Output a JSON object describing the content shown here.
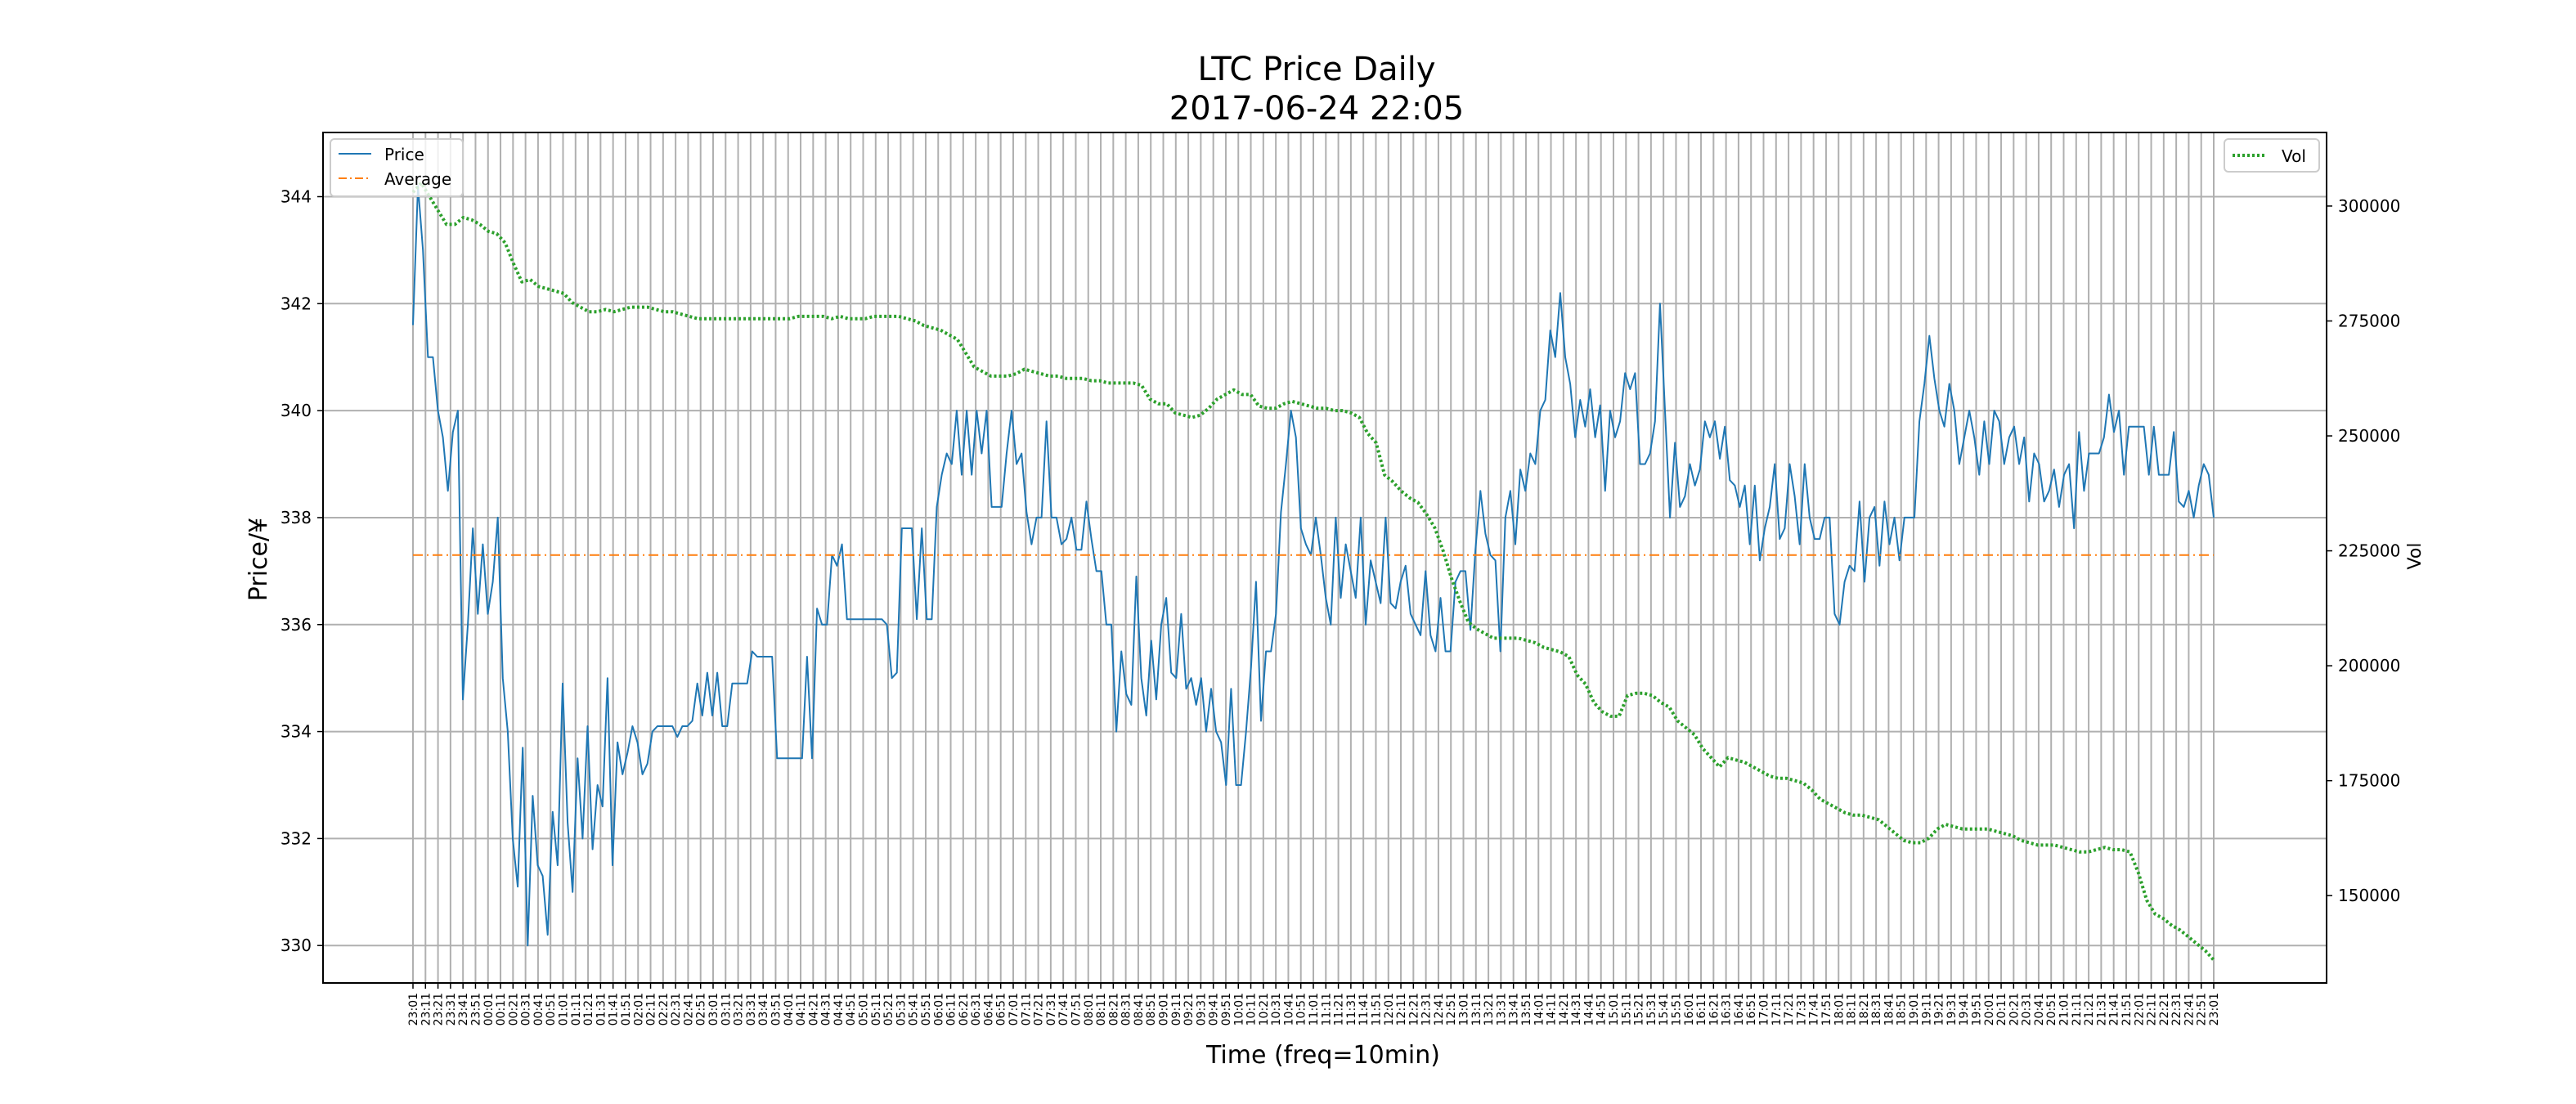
{
  "chart_data": {
    "type": "line",
    "title": "LTC Price Daily",
    "subtitle": "2017-06-24 22:05",
    "xlabel": "Time (freq=10min)",
    "ylabel": "Price/¥",
    "y2label": "Vol",
    "ylim": [
      329.3,
      345.2
    ],
    "y2lim": [
      131000,
      316000
    ],
    "yticks": [
      330,
      332,
      334,
      336,
      338,
      340,
      342,
      344
    ],
    "y2ticks": [
      150000,
      175000,
      200000,
      225000,
      250000,
      275000,
      300000
    ],
    "grid": true,
    "legend_left": {
      "placement": "upper left",
      "entries": [
        "Price",
        "Average"
      ]
    },
    "legend_right": {
      "placement": "upper right",
      "entries": [
        "Vol"
      ]
    },
    "x_ticks": [
      "23:01",
      "23:11",
      "23:21",
      "23:31",
      "23:41",
      "23:51",
      "00:01",
      "00:11",
      "00:21",
      "00:31",
      "00:41",
      "00:51",
      "01:01",
      "01:11",
      "01:21",
      "01:31",
      "01:41",
      "01:51",
      "02:01",
      "02:11",
      "02:21",
      "02:31",
      "02:41",
      "02:51",
      "03:01",
      "03:11",
      "03:21",
      "03:31",
      "03:41",
      "03:51",
      "04:01",
      "04:11",
      "04:21",
      "04:31",
      "04:41",
      "04:51",
      "05:01",
      "05:11",
      "05:21",
      "05:31",
      "05:41",
      "05:51",
      "06:01",
      "06:11",
      "06:21",
      "06:31",
      "06:41",
      "06:51",
      "07:01",
      "07:11",
      "07:21",
      "07:31",
      "07:41",
      "07:51",
      "08:01",
      "08:11",
      "08:21",
      "08:31",
      "08:41",
      "08:51",
      "09:01",
      "09:11",
      "09:21",
      "09:31",
      "09:41",
      "09:51",
      "10:01",
      "10:11",
      "10:21",
      "10:31",
      "10:41",
      "10:51",
      "11:01",
      "11:11",
      "11:21",
      "11:31",
      "11:41",
      "11:51",
      "12:01",
      "12:11",
      "12:21",
      "12:31",
      "12:41",
      "12:51",
      "13:01",
      "13:11",
      "13:21",
      "13:31",
      "13:41",
      "13:51",
      "14:01",
      "14:11",
      "14:21",
      "14:31",
      "14:41",
      "14:51",
      "15:01",
      "15:11",
      "15:21",
      "15:31",
      "15:41",
      "15:51",
      "16:01",
      "16:11",
      "16:21",
      "16:31",
      "16:41",
      "16:51",
      "17:01",
      "17:11",
      "17:21",
      "17:31",
      "17:41",
      "17:51",
      "18:01",
      "18:11",
      "18:21",
      "18:31",
      "18:41",
      "18:51",
      "19:01",
      "19:11",
      "19:21",
      "19:31",
      "19:41",
      "19:51",
      "20:01",
      "20:11",
      "20:21",
      "20:31",
      "20:41",
      "20:51",
      "21:01",
      "21:11",
      "21:21",
      "21:31",
      "21:41",
      "21:51",
      "22:01",
      "22:11",
      "22:21",
      "22:31",
      "22:41",
      "22:51",
      "23:01"
    ],
    "series": [
      {
        "name": "Price",
        "axis": "left",
        "style": "solid",
        "color": "#1f77b4",
        "values": [
          341.6,
          344.2,
          343.0,
          341.0,
          341.0,
          340.0,
          339.5,
          338.5,
          339.6,
          340.0,
          334.6,
          336.0,
          337.8,
          336.2,
          337.5,
          336.2,
          336.8,
          338.0,
          335.0,
          334.0,
          332.0,
          331.1,
          333.7,
          330.0,
          332.8,
          331.5,
          331.3,
          330.2,
          332.5,
          331.5,
          334.9,
          332.3,
          331.0,
          333.5,
          332.0,
          334.1,
          331.8,
          333.0,
          332.6,
          335.0,
          331.5,
          333.8,
          333.2,
          333.6,
          334.1,
          333.8,
          333.2,
          333.4,
          334.0,
          334.1,
          334.1,
          334.1,
          334.1,
          333.9,
          334.1,
          334.1,
          334.2,
          334.9,
          334.3,
          335.1,
          334.3,
          335.1,
          334.1,
          334.1,
          334.9,
          334.9,
          334.9,
          334.9,
          335.5,
          335.4,
          335.4,
          335.4,
          335.4,
          333.5,
          333.5,
          333.5,
          333.5,
          333.5,
          333.5,
          335.4,
          333.5,
          336.3,
          336.0,
          336.0,
          337.3,
          337.1,
          337.5,
          336.1,
          336.1,
          336.1,
          336.1,
          336.1,
          336.1,
          336.1,
          336.1,
          336.0,
          335.0,
          335.1,
          337.8,
          337.8,
          337.8,
          336.1,
          337.8,
          336.1,
          336.1,
          338.2,
          338.8,
          339.2,
          339.0,
          340.0,
          338.8,
          340.0,
          338.8,
          340.0,
          339.2,
          340.0,
          338.2,
          338.2,
          338.2,
          339.2,
          340.0,
          339.0,
          339.2,
          338.1,
          337.5,
          338.0,
          338.0,
          339.8,
          338.0,
          338.0,
          337.5,
          337.6,
          338.0,
          337.4,
          337.4,
          338.3,
          337.6,
          337.0,
          337.0,
          336.0,
          336.0,
          334.0,
          335.5,
          334.7,
          334.5,
          336.9,
          335.0,
          334.3,
          335.7,
          334.6,
          336.0,
          336.5,
          335.1,
          335.0,
          336.2,
          334.8,
          335.0,
          334.5,
          335.0,
          334.0,
          334.8,
          334.0,
          333.8,
          333.0,
          334.8,
          333.0,
          333.0,
          334.0,
          335.2,
          336.8,
          334.2,
          335.5,
          335.5,
          336.2,
          338.1,
          339.0,
          340.0,
          339.5,
          337.8,
          337.5,
          337.3,
          338.0,
          337.3,
          336.5,
          336.0,
          338.0,
          336.5,
          337.5,
          337.0,
          336.5,
          338.0,
          336.0,
          337.2,
          336.8,
          336.4,
          338.0,
          336.4,
          336.3,
          336.8,
          337.1,
          336.2,
          336.0,
          335.8,
          337.0,
          335.8,
          335.5,
          336.5,
          335.5,
          335.5,
          336.8,
          337.0,
          337.0,
          335.9,
          337.4,
          338.5,
          337.7,
          337.3,
          337.2,
          335.5,
          338.0,
          338.5,
          337.5,
          338.9,
          338.5,
          339.2,
          339.0,
          340.0,
          340.2,
          341.5,
          341.0,
          342.2,
          341.0,
          340.5,
          339.5,
          340.2,
          339.7,
          340.4,
          339.5,
          340.1,
          338.5,
          340.0,
          339.5,
          339.8,
          340.7,
          340.4,
          340.7,
          339.0,
          339.0,
          339.2,
          339.8,
          342.0,
          340.0,
          338.0,
          339.4,
          338.2,
          338.4,
          339.0,
          338.6,
          338.9,
          339.8,
          339.5,
          339.8,
          339.1,
          339.7,
          338.7,
          338.6,
          338.2,
          338.6,
          337.5,
          338.6,
          337.2,
          337.8,
          338.2,
          339.0,
          337.6,
          337.8,
          339.0,
          338.4,
          337.5,
          339.0,
          338.0,
          337.6,
          337.6,
          338.0,
          338.0,
          336.2,
          336.0,
          336.8,
          337.1,
          337.0,
          338.3,
          336.8,
          338.0,
          338.2,
          337.1,
          338.3,
          337.5,
          338.0,
          337.2,
          338.0,
          338.0,
          338.0,
          339.8,
          340.5,
          341.4,
          340.6,
          340.0,
          339.7,
          340.5,
          340.0,
          339.0,
          339.5,
          340.0,
          339.5,
          338.8,
          339.8,
          339.0,
          340.0,
          339.8,
          339.0,
          339.5,
          339.7,
          339.0,
          339.5,
          338.3,
          339.2,
          339.0,
          338.3,
          338.5,
          338.9,
          338.2,
          338.8,
          339.0,
          337.8,
          339.6,
          338.5,
          339.2,
          339.2,
          339.2,
          339.5,
          340.3,
          339.6,
          340.0,
          338.8,
          339.7,
          339.7,
          339.7,
          339.7,
          338.8,
          339.7,
          338.8,
          338.8,
          338.8,
          339.6,
          338.3,
          338.2,
          338.5,
          338.0,
          338.6,
          339.0,
          338.8,
          338.0
        ]
      },
      {
        "name": "Average",
        "axis": "left",
        "style": "dashdot",
        "color": "#ff7f0e",
        "values": [
          337.3,
          337.3
        ]
      },
      {
        "name": "Vol",
        "axis": "right",
        "style": "dotted",
        "color": "#2ca02c",
        "values": [
          303000,
          305000,
          302000,
          299000,
          296000,
          296000,
          297500,
          297000,
          296000,
          294500,
          294000,
          292000,
          287500,
          283500,
          284000,
          282500,
          282000,
          281500,
          281000,
          279000,
          278000,
          277000,
          277000,
          277500,
          277000,
          277500,
          278000,
          278000,
          278000,
          277500,
          277000,
          277000,
          276500,
          276000,
          275500,
          275500,
          275500,
          275500,
          275500,
          275500,
          275500,
          275500,
          275500,
          275500,
          275500,
          275500,
          276000,
          276000,
          276000,
          276000,
          275500,
          276000,
          275500,
          275500,
          275500,
          276000,
          276000,
          276000,
          276000,
          275500,
          275000,
          274000,
          273500,
          273000,
          272000,
          271000,
          268000,
          265000,
          264000,
          263000,
          263000,
          263000,
          263500,
          264500,
          264000,
          263500,
          263000,
          263000,
          262500,
          262500,
          262500,
          262000,
          262000,
          261500,
          261500,
          261500,
          261500,
          261000,
          258000,
          257000,
          257000,
          255000,
          254500,
          254000,
          254500,
          256000,
          258000,
          259000,
          260000,
          259000,
          259000,
          256500,
          256000,
          256000,
          257000,
          257500,
          257000,
          256500,
          256000,
          256000,
          255500,
          255500,
          255000,
          254000,
          250500,
          248500,
          241500,
          240000,
          238000,
          236500,
          235500,
          233000,
          230000,
          225000,
          219000,
          214000,
          209500,
          208000,
          207000,
          206000,
          206000,
          206000,
          206000,
          205500,
          205000,
          204000,
          203500,
          203000,
          202000,
          198000,
          196000,
          192000,
          190000,
          189000,
          189000,
          193500,
          194000,
          194000,
          193500,
          192000,
          191000,
          188000,
          186500,
          185000,
          182000,
          180000,
          178000,
          180000,
          179500,
          179000,
          178000,
          177000,
          176000,
          175500,
          175500,
          175000,
          174500,
          173000,
          171000,
          170000,
          169000,
          168000,
          167500,
          167500,
          167000,
          166500,
          165000,
          163500,
          162000,
          161500,
          161500,
          162500,
          164500,
          165500,
          165000,
          164500,
          164500,
          164500,
          164500,
          164000,
          163500,
          163000,
          162000,
          161500,
          161000,
          161000,
          161000,
          160500,
          160000,
          159500,
          159500,
          160000,
          160500,
          160000,
          160000,
          159500,
          155000,
          149000,
          146000,
          145000,
          143500,
          142500,
          141000,
          139500,
          138000,
          136000
        ]
      }
    ]
  }
}
